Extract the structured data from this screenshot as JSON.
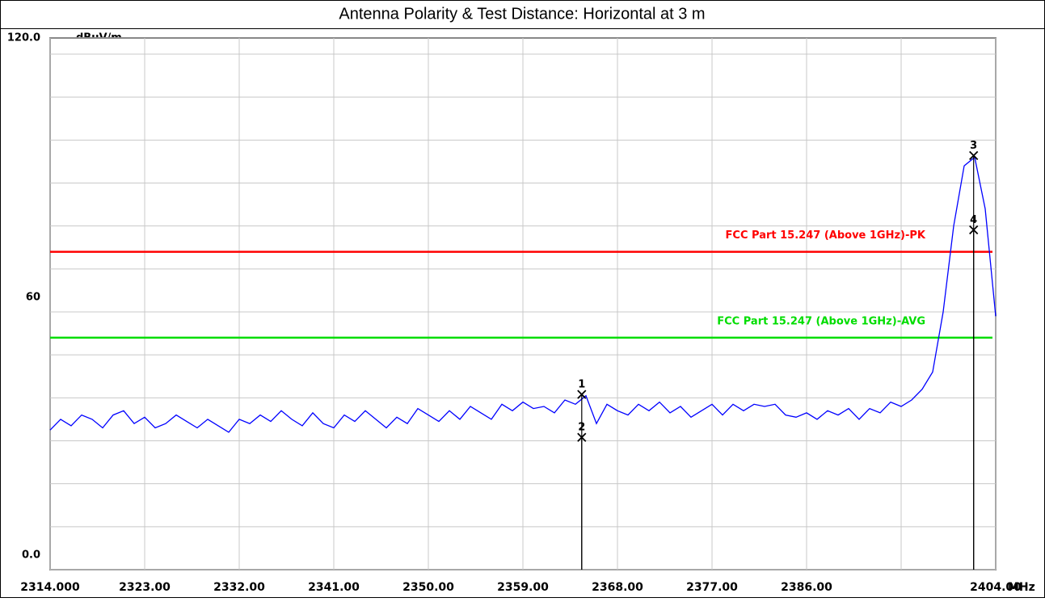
{
  "chart_data": {
    "type": "line",
    "title": "Antenna Polarity & Test Distance: Horizontal at 3 m",
    "y_unit": "dBuV/m",
    "x_unit": "MHz",
    "xlim": [
      2314,
      2404
    ],
    "ylim": [
      0,
      120
    ],
    "xticks": [
      {
        "value": 2314,
        "label": "2314.000"
      },
      {
        "value": 2323,
        "label": "2323.00"
      },
      {
        "value": 2332,
        "label": "2332.00"
      },
      {
        "value": 2341,
        "label": "2341.00"
      },
      {
        "value": 2350,
        "label": "2350.00"
      },
      {
        "value": 2359,
        "label": "2359.00"
      },
      {
        "value": 2368,
        "label": "2368.00"
      },
      {
        "value": 2377,
        "label": "2377.00"
      },
      {
        "value": 2386,
        "label": "2386.00"
      },
      {
        "value": 2404,
        "label": "2404.00"
      }
    ],
    "xminor": [
      2395
    ],
    "yticks": [
      {
        "value": 0,
        "label": "0.0"
      },
      60,
      {
        "value": 120,
        "label": "120.0"
      }
    ],
    "yminor": [
      10,
      20,
      30,
      40,
      50,
      70,
      80,
      90,
      100,
      110
    ],
    "grid": true,
    "series": [
      {
        "color": "#0000ff",
        "x": [
          2314,
          2315,
          2316,
          2317,
          2318,
          2319,
          2320,
          2321,
          2322,
          2323,
          2324,
          2325,
          2326,
          2327,
          2328,
          2329,
          2330,
          2331,
          2332,
          2333,
          2334,
          2335,
          2336,
          2337,
          2338,
          2339,
          2340,
          2341,
          2342,
          2343,
          2344,
          2345,
          2346,
          2347,
          2348,
          2349,
          2350,
          2351,
          2352,
          2353,
          2354,
          2355,
          2356,
          2357,
          2358,
          2359,
          2360,
          2361,
          2362,
          2363,
          2364,
          2365,
          2366,
          2367,
          2368,
          2369,
          2370,
          2371,
          2372,
          2373,
          2374,
          2375,
          2376,
          2377,
          2378,
          2379,
          2380,
          2381,
          2382,
          2383,
          2384,
          2385,
          2386,
          2387,
          2388,
          2389,
          2390,
          2391,
          2392,
          2393,
          2394,
          2395,
          2396,
          2397,
          2398,
          2399,
          2400,
          2401,
          2402,
          2403,
          2404
        ],
        "values": [
          32.5,
          35,
          33.5,
          36,
          35,
          33,
          36,
          37,
          34,
          35.5,
          33,
          34,
          36,
          34.5,
          33,
          35,
          33.5,
          32,
          35,
          34,
          36,
          34.5,
          37,
          35,
          33.5,
          36.5,
          34,
          33,
          36,
          34.5,
          37,
          35,
          33,
          35.5,
          34,
          37.5,
          36,
          34.5,
          37,
          35,
          38,
          36.5,
          35,
          38.5,
          37,
          39,
          37.5,
          38,
          36.5,
          39.5,
          38.5,
          40.5,
          34,
          38.5,
          37,
          36,
          38.5,
          37,
          39,
          36.5,
          38,
          35.5,
          37,
          38.5,
          36,
          38.5,
          37,
          38.5,
          38,
          38.5,
          36,
          35.5,
          36.5,
          35,
          37,
          36,
          37.5,
          35,
          37.5,
          36.5,
          39,
          38,
          39.5,
          42,
          46,
          60,
          80,
          94,
          96,
          84,
          59
        ]
      }
    ],
    "limits": [
      {
        "name": "FCC Part 15.247 (Above 1GHz)-PK",
        "color": "#ff0000",
        "value": 74
      },
      {
        "name": "FCC Part 15.247 (Above 1GHz)-AVG",
        "color": "#00dd00",
        "value": 54
      }
    ],
    "markers": {
      "labels": [
        "1",
        "2",
        "3",
        "4"
      ],
      "x": [
        2364.6,
        2364.6,
        2401.9,
        2401.9
      ],
      "values": [
        40.8,
        30.8,
        96.4,
        79.1
      ]
    }
  }
}
